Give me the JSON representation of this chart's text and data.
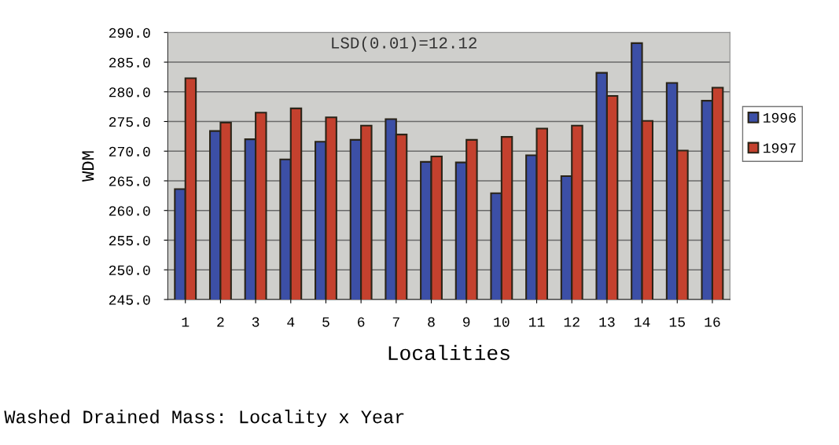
{
  "chart_data": {
    "type": "bar",
    "title": "Washed Drained Mass: Locality x Year",
    "xlabel": "Localities",
    "ylabel": "WDM",
    "categories": [
      "1",
      "2",
      "3",
      "4",
      "5",
      "6",
      "7",
      "8",
      "9",
      "10",
      "11",
      "12",
      "13",
      "14",
      "15",
      "16"
    ],
    "series": [
      {
        "name": "1996",
        "color": "#3c4fa6",
        "values": [
          263.6,
          273.4,
          272.0,
          268.6,
          271.6,
          271.9,
          275.4,
          268.2,
          268.1,
          262.9,
          269.3,
          265.8,
          283.2,
          288.2,
          281.5,
          278.5
        ]
      },
      {
        "name": "1997",
        "color": "#c4412e",
        "values": [
          282.3,
          274.8,
          276.5,
          277.2,
          275.7,
          274.3,
          272.8,
          269.1,
          271.9,
          272.4,
          273.8,
          274.3,
          279.3,
          275.1,
          270.1,
          280.7
        ]
      }
    ],
    "ylim": [
      245,
      290
    ],
    "yticks": [
      {
        "value": 245,
        "label": "245.0"
      },
      {
        "value": 250,
        "label": "250.0"
      },
      {
        "value": 255,
        "label": "255.0"
      },
      {
        "value": 260,
        "label": "260.0"
      },
      {
        "value": 265,
        "label": "265.0"
      },
      {
        "value": 270,
        "label": "270.0"
      },
      {
        "value": 275,
        "label": "275.0"
      },
      {
        "value": 280,
        "label": "280.0"
      },
      {
        "value": 285,
        "label": "285.0"
      },
      {
        "value": 290,
        "label": "290.0"
      }
    ],
    "grid": "y",
    "legend": "right",
    "annotations": [
      "LSD(0.01)=12.12"
    ]
  }
}
